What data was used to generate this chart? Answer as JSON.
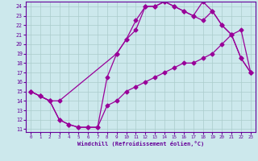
{
  "xlabel": "Windchill (Refroidissement éolien,°C)",
  "bg_color": "#cce8ec",
  "line_color": "#990099",
  "grid_color": "#aacccc",
  "spine_color": "#660099",
  "tick_color": "#660099",
  "xlim": [
    -0.5,
    23.5
  ],
  "ylim": [
    10.7,
    24.5
  ],
  "xticks": [
    0,
    1,
    2,
    3,
    4,
    5,
    6,
    7,
    8,
    9,
    10,
    11,
    12,
    13,
    14,
    15,
    16,
    17,
    18,
    19,
    20,
    21,
    22,
    23
  ],
  "yticks": [
    11,
    12,
    13,
    14,
    15,
    16,
    17,
    18,
    19,
    20,
    21,
    22,
    23,
    24
  ],
  "line1_x": [
    0,
    1,
    2,
    3,
    4,
    5,
    6,
    7,
    8,
    9,
    10,
    11,
    12,
    13,
    14,
    15,
    16,
    17,
    18,
    19,
    20,
    21,
    22,
    23
  ],
  "line1_y": [
    15,
    14.5,
    14,
    12,
    11.5,
    11.2,
    11.2,
    11.2,
    13.5,
    14,
    15,
    15.5,
    16,
    16.5,
    17,
    17.5,
    18,
    18,
    18.5,
    19,
    20,
    21,
    21.5,
    17
  ],
  "line2_x": [
    0,
    1,
    2,
    3,
    4,
    5,
    6,
    7,
    8,
    9,
    10,
    11,
    12,
    13,
    14,
    15,
    16,
    17,
    18,
    19,
    20,
    21,
    22,
    23
  ],
  "line2_y": [
    15,
    14.5,
    14,
    12,
    11.5,
    11.2,
    11.2,
    11.2,
    16.5,
    19,
    20.5,
    21.5,
    24,
    24,
    24.5,
    24,
    23.5,
    23,
    22.5,
    23.5,
    22,
    21,
    18.5,
    17
  ],
  "line3_x": [
    0,
    1,
    2,
    3,
    9,
    10,
    11,
    12,
    13,
    14,
    15,
    16,
    17,
    18,
    19,
    20,
    21,
    22,
    23
  ],
  "line3_y": [
    15,
    14.5,
    14,
    14,
    19,
    20.5,
    22.5,
    24,
    24,
    24.5,
    24,
    23.5,
    23,
    24.5,
    23.5,
    22,
    21,
    18.5,
    17
  ]
}
